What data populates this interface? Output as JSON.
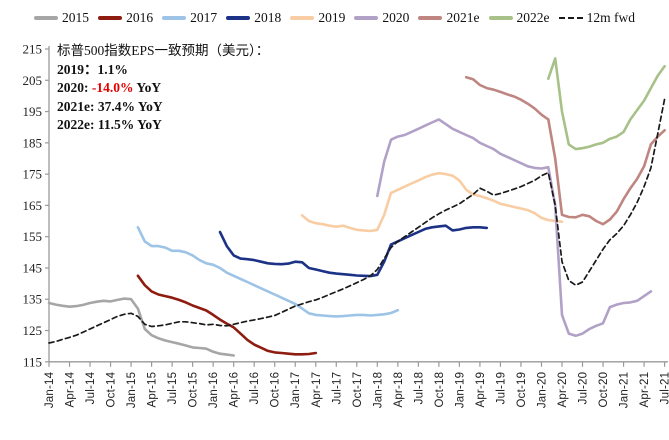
{
  "legend": {
    "items": [
      {
        "label": "2015",
        "color": "#a6a6a6",
        "dashed": false
      },
      {
        "label": "2016",
        "color": "#8e1c10",
        "dashed": false
      },
      {
        "label": "2017",
        "color": "#9dc3e6",
        "dashed": false
      },
      {
        "label": "2018",
        "color": "#1c3286",
        "dashed": false
      },
      {
        "label": "2019",
        "color": "#f9cda4",
        "dashed": false
      },
      {
        "label": "2020",
        "color": "#b2a1c7",
        "dashed": false
      },
      {
        "label": "2021e",
        "color": "#bf8580",
        "dashed": false
      },
      {
        "label": "2022e",
        "color": "#a7c189",
        "dashed": false
      },
      {
        "label": "12m fwd",
        "color": "#1a1a1a",
        "dashed": true
      }
    ]
  },
  "annotation": {
    "title": "标普500指数EPS一致预期（美元）：",
    "line_2019": "2019：1.1%",
    "line_2020_prefix": "2020: ",
    "line_2020_value": "-14.0%",
    "line_2020_suffix": " YoY",
    "line_2021": "2021e: 37.4% YoY",
    "line_2022": "2022e: 11.5% YoY",
    "highlight_color": "#e80000"
  },
  "chart_data": {
    "type": "line",
    "title": "标普500指数EPS一致预期（美元）",
    "x_axis": {
      "tick_labels": [
        "Jan-14",
        "Apr-14",
        "Jul-14",
        "Oct-14",
        "Jan-15",
        "Apr-15",
        "Jul-15",
        "Oct-15",
        "Jan-16",
        "Apr-16",
        "Jul-16",
        "Oct-16",
        "Jan-17",
        "Apr-17",
        "Jul-17",
        "Oct-17",
        "Jan-18",
        "Apr-18",
        "Jul-18",
        "Oct-18",
        "Jan-19",
        "Apr-19",
        "Jul-19",
        "Oct-19",
        "Jan-20",
        "Apr-20",
        "Jul-20",
        "Oct-20",
        "Jan-21",
        "Apr-21",
        "Jul-21"
      ],
      "months_per_tick": 3
    },
    "y_axis": {
      "min": 115,
      "max": 215,
      "step": 10
    },
    "grid": false,
    "legend_position": "top",
    "series": [
      {
        "name": "2015",
        "color": "#a6a6a6",
        "dashed": false,
        "start_month": 0,
        "values": [
          133.8,
          133.3,
          132.9,
          132.6,
          132.8,
          133.2,
          133.8,
          134.2,
          134.5,
          134.3,
          134.8,
          135.2,
          135.0,
          132.0,
          125.5,
          123.5,
          122.5,
          121.8,
          121.3,
          120.8,
          120.2,
          119.6,
          119.4,
          119.2,
          118.2,
          117.6,
          117.3,
          117.0
        ]
      },
      {
        "name": "2016",
        "color": "#8e1c10",
        "dashed": false,
        "start_month": 13,
        "values": [
          142.5,
          139.5,
          137.5,
          136.5,
          136.0,
          135.5,
          134.8,
          134.0,
          133.0,
          132.2,
          131.4,
          130.0,
          128.5,
          127.2,
          126.0,
          124.0,
          122.0,
          120.5,
          119.5,
          118.5,
          118.0,
          117.8,
          117.6,
          117.4,
          117.4,
          117.5,
          117.8
        ]
      },
      {
        "name": "2017",
        "color": "#9dc3e6",
        "dashed": false,
        "start_month": 13,
        "values": [
          158.0,
          153.5,
          152.0,
          152.0,
          151.5,
          150.5,
          150.5,
          150.0,
          149.0,
          147.5,
          146.5,
          146.0,
          145.0,
          143.5,
          142.5,
          141.5,
          140.5,
          139.5,
          138.5,
          137.5,
          136.5,
          135.5,
          134.5,
          133.5,
          132.0,
          130.5,
          130.0,
          129.8,
          129.6,
          129.5,
          129.6,
          129.8,
          130.0,
          130.0,
          129.8,
          130.0,
          130.2,
          130.6,
          131.5
        ]
      },
      {
        "name": "2018",
        "color": "#1c3286",
        "dashed": false,
        "start_month": 25,
        "values": [
          156.5,
          152.0,
          149.0,
          148.0,
          147.8,
          147.5,
          147.0,
          146.5,
          146.3,
          146.2,
          146.4,
          147.0,
          146.8,
          145.0,
          144.5,
          144.0,
          143.5,
          143.2,
          143.0,
          142.8,
          142.6,
          142.5,
          142.4,
          142.8,
          147.0,
          152.5,
          153.5,
          154.5,
          155.5,
          156.5,
          157.5,
          158.0,
          158.3,
          158.5,
          157.0,
          157.3,
          157.8,
          158.0,
          158.0,
          157.8
        ]
      },
      {
        "name": "2019",
        "color": "#f9cda4",
        "dashed": false,
        "start_month": 37,
        "values": [
          161.8,
          160.0,
          159.3,
          159.0,
          158.5,
          158.2,
          158.5,
          157.8,
          157.2,
          157.0,
          156.8,
          157.2,
          162.0,
          169.0,
          170.0,
          171.0,
          172.0,
          173.0,
          174.0,
          174.8,
          175.3,
          175.0,
          174.5,
          173.0,
          170.0,
          168.5,
          168.0,
          167.3,
          166.5,
          165.5,
          165.0,
          164.5,
          164.0,
          163.5,
          162.5,
          161.0,
          160.3,
          160.0,
          159.8
        ]
      },
      {
        "name": "2020",
        "color": "#b2a1c7",
        "dashed": false,
        "start_month": 48,
        "values": [
          168.0,
          179.0,
          186.0,
          187.0,
          187.5,
          188.5,
          189.5,
          190.5,
          191.5,
          192.5,
          191.0,
          189.5,
          188.5,
          187.5,
          186.5,
          185.0,
          184.0,
          183.0,
          181.5,
          180.5,
          179.5,
          178.5,
          177.5,
          177.0,
          176.8,
          177.2,
          165.0,
          130.0,
          124.0,
          123.3,
          124.0,
          125.5,
          126.5,
          127.3,
          132.5,
          133.3,
          133.8,
          134.0,
          134.5,
          136.0,
          137.5
        ]
      },
      {
        "name": "2021e",
        "color": "#bf8580",
        "dashed": false,
        "start_month": 61,
        "values": [
          206.0,
          205.3,
          203.5,
          202.5,
          202.0,
          201.3,
          200.5,
          199.8,
          198.8,
          197.5,
          196.0,
          194.0,
          192.5,
          180.0,
          162.0,
          161.3,
          161.2,
          162.0,
          161.5,
          160.0,
          159.0,
          160.5,
          163.0,
          167.0,
          170.5,
          173.5,
          177.5,
          184.5,
          187.0,
          189.0
        ]
      },
      {
        "name": "2022e",
        "color": "#a7c189",
        "dashed": false,
        "start_month": 73,
        "values": [
          205.5,
          212.0,
          195.0,
          184.5,
          183.0,
          183.3,
          183.8,
          184.5,
          185.0,
          186.3,
          187.0,
          188.5,
          192.5,
          195.5,
          198.5,
          202.5,
          206.5,
          209.5
        ]
      },
      {
        "name": "12m fwd",
        "color": "#1a1a1a",
        "dashed": true,
        "start_month": 0,
        "values": [
          121.0,
          121.5,
          122.2,
          122.8,
          123.5,
          124.5,
          125.5,
          126.5,
          127.5,
          128.5,
          129.5,
          130.2,
          130.5,
          129.5,
          127.0,
          126.3,
          126.5,
          126.8,
          127.3,
          127.8,
          127.8,
          127.5,
          127.2,
          126.8,
          127.0,
          126.6,
          126.5,
          127.0,
          127.5,
          128.0,
          128.4,
          128.8,
          129.3,
          129.8,
          130.8,
          131.8,
          132.8,
          133.5,
          134.2,
          134.8,
          135.6,
          136.5,
          137.4,
          138.3,
          139.3,
          140.3,
          141.3,
          142.5,
          144.5,
          148.0,
          151.5,
          153.5,
          155.0,
          156.5,
          158.0,
          159.5,
          161.0,
          162.3,
          163.5,
          164.5,
          165.5,
          167.0,
          168.5,
          170.5,
          169.5,
          168.3,
          168.8,
          169.5,
          170.2,
          171.0,
          172.0,
          173.0,
          174.5,
          175.5,
          165.0,
          147.0,
          141.0,
          139.5,
          140.5,
          144.0,
          147.5,
          151.0,
          154.0,
          156.0,
          158.5,
          162.0,
          166.0,
          171.0,
          177.0,
          188.0,
          199.0
        ]
      }
    ]
  }
}
